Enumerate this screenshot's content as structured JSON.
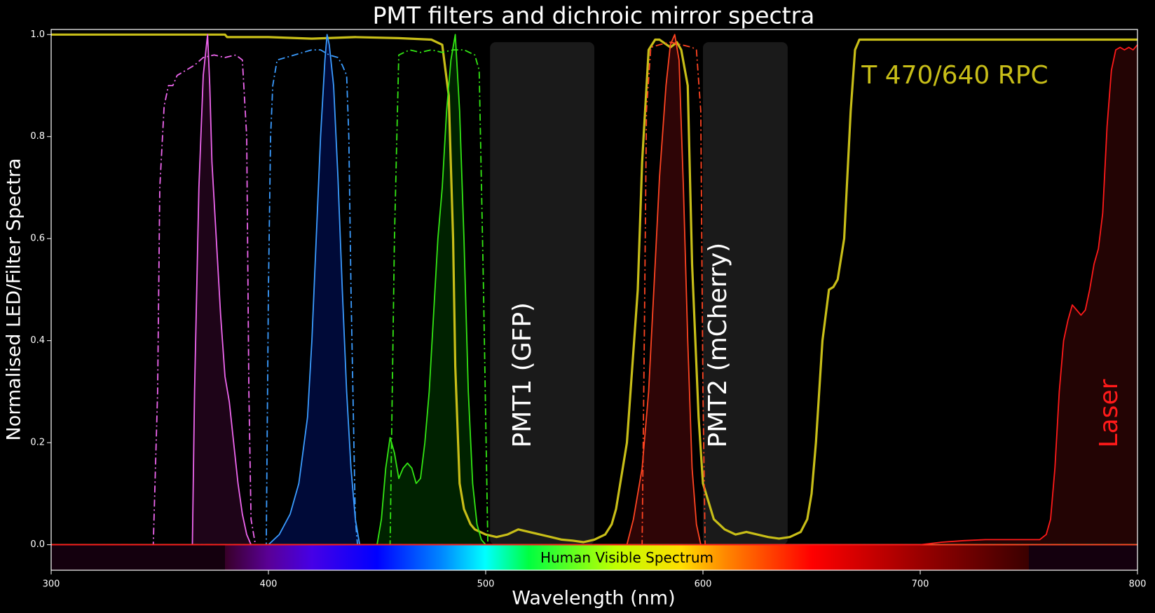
{
  "chart_data": {
    "type": "line",
    "title": "PMT filters and dichroic mirror spectra",
    "xlabel": "Wavelength (nm)",
    "ylabel": "Normalised LED/Filter Spectra",
    "xlim": [
      300,
      800
    ],
    "ylim": [
      -0.05,
      1.01
    ],
    "x_ticks": [
      300,
      400,
      500,
      600,
      700,
      800
    ],
    "x_tick_labels": [
      "300",
      "400",
      "500",
      "600",
      "700",
      "800"
    ],
    "y_ticks": [
      0.0,
      0.2,
      0.4,
      0.6,
      0.8,
      1.0
    ],
    "y_tick_labels": [
      "0.0",
      "0.2",
      "0.4",
      "0.6",
      "0.8",
      "1.0"
    ],
    "grid": false,
    "background": "#000000",
    "visible_band": {
      "label": "Human Visible Spectrum",
      "start": 380,
      "end": 750,
      "y_bottom": -0.05,
      "y_top": 0.0
    },
    "annotations": [
      {
        "key": "pmt1",
        "text": "PMT1 (GFP)",
        "x": 517,
        "y": 0.19,
        "rotation": 90,
        "color": "#ffffff"
      },
      {
        "key": "pmt2",
        "text": "PMT2 (mCherry)",
        "x": 607,
        "y": 0.19,
        "rotation": 90,
        "color": "#ffffff"
      },
      {
        "key": "dichroic",
        "text": "T 470/640 RPC",
        "x": 673,
        "y": 0.92,
        "rotation": 0,
        "color": "#c8be18"
      },
      {
        "key": "laser",
        "text": "Laser",
        "x": 787,
        "y": 0.19,
        "rotation": 90,
        "color": "#ff1a1a"
      }
    ],
    "detector_bands": [
      {
        "key": "pmt1",
        "start": 502,
        "end": 550,
        "top": 0.985,
        "color": "#1a1a1a"
      },
      {
        "key": "pmt2",
        "start": 600,
        "end": 639,
        "top": 0.985,
        "color": "#1a1a1a"
      }
    ],
    "series": [
      {
        "key": "dichroic",
        "color": "#c8be18",
        "style": "solid",
        "width": 3.2,
        "fill": null,
        "x": [
          300,
          380,
          381,
          400,
          420,
          440,
          460,
          475,
          480,
          483,
          485,
          486,
          488,
          490,
          493,
          495,
          500,
          505,
          510,
          515,
          520,
          525,
          530,
          535,
          540,
          545,
          550,
          555,
          558,
          560,
          565,
          570,
          572,
          575,
          578,
          580,
          585,
          588,
          590,
          593,
          595,
          598,
          600,
          605,
          610,
          615,
          620,
          625,
          630,
          635,
          640,
          645,
          648,
          650,
          652,
          655,
          658,
          660,
          662,
          665,
          668,
          670,
          672,
          680,
          700,
          750,
          800
        ],
        "y": [
          1.0,
          1.0,
          0.995,
          0.995,
          0.992,
          0.995,
          0.993,
          0.99,
          0.98,
          0.88,
          0.6,
          0.35,
          0.12,
          0.07,
          0.04,
          0.03,
          0.02,
          0.015,
          0.02,
          0.03,
          0.025,
          0.02,
          0.015,
          0.01,
          0.008,
          0.005,
          0.01,
          0.02,
          0.04,
          0.07,
          0.2,
          0.5,
          0.75,
          0.97,
          0.99,
          0.99,
          0.975,
          0.985,
          0.97,
          0.9,
          0.55,
          0.25,
          0.12,
          0.05,
          0.03,
          0.02,
          0.025,
          0.02,
          0.015,
          0.012,
          0.015,
          0.025,
          0.05,
          0.1,
          0.2,
          0.4,
          0.5,
          0.505,
          0.52,
          0.6,
          0.85,
          0.97,
          0.99,
          0.99,
          0.99,
          0.99,
          0.99
        ]
      },
      {
        "key": "violet_filter",
        "color": "#ee66ee",
        "style": "dashdot",
        "width": 1.8,
        "fill": null,
        "x": [
          300,
          347,
          349,
          350,
          352,
          354,
          356,
          358,
          362,
          366,
          370,
          375,
          380,
          385,
          388,
          390,
          391,
          392,
          394,
          800
        ],
        "y": [
          0.0,
          0.0,
          0.3,
          0.7,
          0.86,
          0.9,
          0.9,
          0.92,
          0.93,
          0.94,
          0.955,
          0.96,
          0.955,
          0.96,
          0.95,
          0.8,
          0.3,
          0.05,
          0.0,
          0.0
        ]
      },
      {
        "key": "violet_led",
        "color": "#ee66ee",
        "style": "solid",
        "width": 1.8,
        "fill": "#1e0418",
        "x": [
          300,
          365,
          366,
          368,
          370,
          372,
          373,
          374,
          376,
          378,
          380,
          382,
          384,
          386,
          388,
          390,
          392,
          800
        ],
        "y": [
          0.0,
          0.0,
          0.3,
          0.7,
          0.92,
          1.0,
          0.9,
          0.75,
          0.6,
          0.45,
          0.33,
          0.28,
          0.2,
          0.12,
          0.06,
          0.02,
          0.0,
          0.0
        ]
      },
      {
        "key": "blue_filter",
        "color": "#3b9cff",
        "style": "dashdot",
        "width": 1.8,
        "fill": null,
        "x": [
          300,
          399,
          400,
          401,
          402,
          404,
          408,
          412,
          416,
          420,
          424,
          428,
          432,
          434,
          436,
          437,
          438,
          440,
          441,
          800
        ],
        "y": [
          0.0,
          0.0,
          0.5,
          0.8,
          0.9,
          0.95,
          0.955,
          0.96,
          0.965,
          0.97,
          0.97,
          0.96,
          0.955,
          0.94,
          0.92,
          0.8,
          0.5,
          0.05,
          0.0,
          0.0
        ]
      },
      {
        "key": "blue_led",
        "color": "#3b9cff",
        "style": "solid",
        "width": 1.8,
        "fill": "#000a38",
        "x": [
          300,
          400,
          405,
          410,
          414,
          418,
          420,
          422,
          424,
          426,
          427,
          428,
          430,
          432,
          434,
          436,
          438,
          440,
          442,
          800
        ],
        "y": [
          0.0,
          0.0,
          0.02,
          0.06,
          0.12,
          0.25,
          0.4,
          0.6,
          0.8,
          0.95,
          1.0,
          0.98,
          0.9,
          0.72,
          0.5,
          0.3,
          0.15,
          0.05,
          0.0,
          0.0
        ]
      },
      {
        "key": "green_filter",
        "color": "#33e614",
        "style": "dashdot",
        "width": 1.8,
        "fill": null,
        "x": [
          300,
          456,
          457,
          458,
          460,
          465,
          470,
          475,
          480,
          485,
          490,
          495,
          497,
          499,
          501,
          800
        ],
        "y": [
          0.0,
          0.0,
          0.3,
          0.6,
          0.96,
          0.97,
          0.965,
          0.97,
          0.965,
          0.97,
          0.97,
          0.96,
          0.93,
          0.5,
          0.0,
          0.0
        ]
      },
      {
        "key": "green_led",
        "color": "#33e614",
        "style": "solid",
        "width": 1.8,
        "fill": "#002200",
        "x": [
          300,
          450,
          452,
          454,
          456,
          458,
          460,
          462,
          464,
          466,
          468,
          470,
          472,
          474,
          476,
          478,
          480,
          482,
          484,
          486,
          488,
          490,
          492,
          494,
          496,
          498,
          500,
          800
        ],
        "y": [
          0.0,
          0.0,
          0.05,
          0.15,
          0.21,
          0.18,
          0.13,
          0.15,
          0.16,
          0.15,
          0.12,
          0.13,
          0.2,
          0.3,
          0.45,
          0.6,
          0.7,
          0.85,
          0.95,
          1.0,
          0.85,
          0.6,
          0.3,
          0.12,
          0.04,
          0.01,
          0.0,
          0.0
        ]
      },
      {
        "key": "orange_filter",
        "color": "#ff4422",
        "style": "dashdot",
        "width": 1.8,
        "fill": null,
        "x": [
          300,
          572,
          573,
          574,
          576,
          580,
          585,
          590,
          595,
          597,
          599,
          600,
          601,
          800
        ],
        "y": [
          0.0,
          0.0,
          0.4,
          0.85,
          0.975,
          0.98,
          0.985,
          0.98,
          0.975,
          0.97,
          0.85,
          0.3,
          0.0,
          0.0
        ]
      },
      {
        "key": "orange_led",
        "color": "#ff4422",
        "style": "solid",
        "width": 1.8,
        "fill": "#2e0506",
        "x": [
          300,
          565,
          568,
          572,
          575,
          578,
          580,
          583,
          585,
          587,
          589,
          591,
          593,
          595,
          597,
          599,
          800
        ],
        "y": [
          0.0,
          0.0,
          0.05,
          0.15,
          0.3,
          0.55,
          0.72,
          0.9,
          0.98,
          1.0,
          0.95,
          0.7,
          0.4,
          0.15,
          0.04,
          0.0,
          0.0
        ]
      },
      {
        "key": "laser",
        "color": "#ff1a1a",
        "style": "solid",
        "width": 1.8,
        "fill": "#230404",
        "x": [
          300,
          690,
          700,
          710,
          720,
          730,
          740,
          750,
          755,
          758,
          760,
          762,
          764,
          766,
          768,
          770,
          772,
          774,
          776,
          778,
          780,
          782,
          784,
          786,
          788,
          790,
          792,
          794,
          796,
          798,
          800
        ],
        "y": [
          0.0,
          0.0,
          0.0,
          0.005,
          0.008,
          0.01,
          0.01,
          0.01,
          0.01,
          0.02,
          0.05,
          0.15,
          0.3,
          0.4,
          0.44,
          0.47,
          0.46,
          0.45,
          0.46,
          0.5,
          0.55,
          0.58,
          0.65,
          0.82,
          0.93,
          0.97,
          0.975,
          0.97,
          0.975,
          0.97,
          0.98
        ]
      }
    ]
  }
}
